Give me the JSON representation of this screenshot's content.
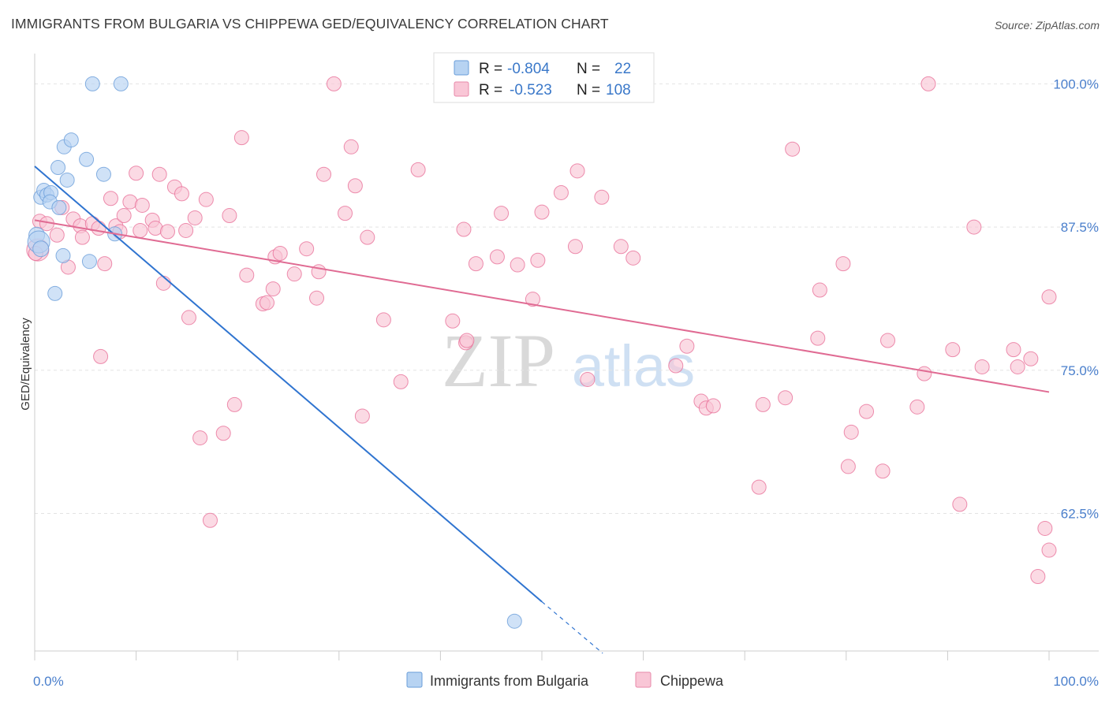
{
  "title": "IMMIGRANTS FROM BULGARIA VS CHIPPEWA GED/EQUIVALENCY CORRELATION CHART",
  "source": "Source: ZipAtlas.com",
  "watermark": {
    "zip": "ZIP",
    "atlas": "atlas"
  },
  "stats": [
    {
      "r_label": "R =",
      "r_value": "-0.804",
      "n_label": "N =",
      "n_value": "22",
      "fill": "#b7d3f2",
      "stroke": "#6a9ed9"
    },
    {
      "r_label": "R =",
      "r_value": "-0.523",
      "n_label": "N =",
      "n_value": "108",
      "fill": "#f9c6d6",
      "stroke": "#e889aa"
    }
  ],
  "chart_data": {
    "type": "scatter",
    "title": "IMMIGRANTS FROM BULGARIA VS CHIPPEWA GED/EQUIVALENCY CORRELATION CHART",
    "xlabel": "",
    "ylabel": "GED/Equivalency",
    "xlim": [
      0,
      100
    ],
    "ylim": [
      50.5,
      102.5
    ],
    "x_tick_labels": [
      {
        "value": 0,
        "label": "0.0%"
      },
      {
        "value": 100,
        "label": "100.0%"
      }
    ],
    "y_tick_labels": [
      {
        "value": 100,
        "label": "100.0%"
      },
      {
        "value": 87.5,
        "label": "87.5%"
      },
      {
        "value": 75,
        "label": "75.0%"
      },
      {
        "value": 62.5,
        "label": "62.5%"
      }
    ],
    "grid": true,
    "legend": "bottom-center",
    "series": [
      {
        "name": "Immigrants from Bulgaria",
        "color": "#6a9ed9",
        "fill": "#b7d3f2",
        "trend": {
          "x1": 0,
          "y1": 92.8,
          "x2": 50,
          "y2": 54.8,
          "dash_to": {
            "x": 56,
            "y": 50.3
          }
        },
        "points": [
          {
            "x": 0.2,
            "y": 86.8,
            "s": 10
          },
          {
            "x": 0.4,
            "y": 86.2,
            "s": 14
          },
          {
            "x": 0.6,
            "y": 85.6,
            "s": 10
          },
          {
            "x": 0.6,
            "y": 90.1,
            "s": 9
          },
          {
            "x": 0.9,
            "y": 90.7,
            "s": 9
          },
          {
            "x": 1.2,
            "y": 90.3,
            "s": 9
          },
          {
            "x": 1.6,
            "y": 90.5,
            "s": 9
          },
          {
            "x": 1.5,
            "y": 89.7,
            "s": 9
          },
          {
            "x": 2.4,
            "y": 89.2,
            "s": 9
          },
          {
            "x": 2.3,
            "y": 92.7,
            "s": 9
          },
          {
            "x": 2.9,
            "y": 94.5,
            "s": 9
          },
          {
            "x": 3.2,
            "y": 91.6,
            "s": 9
          },
          {
            "x": 3.6,
            "y": 95.1,
            "s": 9
          },
          {
            "x": 5.1,
            "y": 93.4,
            "s": 9
          },
          {
            "x": 5.7,
            "y": 100.0,
            "s": 9
          },
          {
            "x": 6.8,
            "y": 92.1,
            "s": 9
          },
          {
            "x": 8.5,
            "y": 100.0,
            "s": 9
          },
          {
            "x": 2.8,
            "y": 85.0,
            "s": 9
          },
          {
            "x": 5.4,
            "y": 84.5,
            "s": 9
          },
          {
            "x": 2.0,
            "y": 81.7,
            "s": 9
          },
          {
            "x": 7.9,
            "y": 86.9,
            "s": 9
          },
          {
            "x": 47.3,
            "y": 53.1,
            "s": 9
          }
        ]
      },
      {
        "name": "Chippewa",
        "color": "#e8729a",
        "fill": "#f9c6d6",
        "trend": {
          "x1": 0,
          "y1": 88.1,
          "x2": 100,
          "y2": 73.1
        },
        "points": [
          {
            "x": 0.3,
            "y": 85.5,
            "s": 14
          },
          {
            "x": 0.5,
            "y": 88.0,
            "s": 9
          },
          {
            "x": 1.2,
            "y": 87.8,
            "s": 9
          },
          {
            "x": 2.2,
            "y": 86.8,
            "s": 9
          },
          {
            "x": 2.7,
            "y": 89.2,
            "s": 9
          },
          {
            "x": 3.3,
            "y": 84.0,
            "s": 9
          },
          {
            "x": 3.8,
            "y": 88.2,
            "s": 9
          },
          {
            "x": 4.5,
            "y": 87.6,
            "s": 9
          },
          {
            "x": 4.7,
            "y": 86.6,
            "s": 9
          },
          {
            "x": 5.7,
            "y": 87.8,
            "s": 9
          },
          {
            "x": 6.3,
            "y": 87.4,
            "s": 9
          },
          {
            "x": 6.5,
            "y": 76.2,
            "s": 9
          },
          {
            "x": 6.9,
            "y": 84.3,
            "s": 9
          },
          {
            "x": 7.5,
            "y": 90.0,
            "s": 9
          },
          {
            "x": 8.0,
            "y": 87.6,
            "s": 9
          },
          {
            "x": 8.4,
            "y": 87.1,
            "s": 9
          },
          {
            "x": 8.8,
            "y": 88.5,
            "s": 9
          },
          {
            "x": 9.4,
            "y": 89.7,
            "s": 9
          },
          {
            "x": 10.0,
            "y": 92.2,
            "s": 9
          },
          {
            "x": 10.4,
            "y": 87.2,
            "s": 9
          },
          {
            "x": 10.6,
            "y": 89.4,
            "s": 9
          },
          {
            "x": 11.6,
            "y": 88.1,
            "s": 9
          },
          {
            "x": 11.9,
            "y": 87.4,
            "s": 9
          },
          {
            "x": 12.3,
            "y": 92.1,
            "s": 9
          },
          {
            "x": 12.7,
            "y": 82.6,
            "s": 9
          },
          {
            "x": 13.1,
            "y": 87.1,
            "s": 9
          },
          {
            "x": 13.8,
            "y": 91.0,
            "s": 9
          },
          {
            "x": 14.5,
            "y": 90.4,
            "s": 9
          },
          {
            "x": 14.9,
            "y": 87.2,
            "s": 9
          },
          {
            "x": 15.2,
            "y": 79.6,
            "s": 9
          },
          {
            "x": 15.8,
            "y": 88.3,
            "s": 9
          },
          {
            "x": 16.3,
            "y": 69.1,
            "s": 9
          },
          {
            "x": 16.9,
            "y": 89.9,
            "s": 9
          },
          {
            "x": 17.3,
            "y": 61.9,
            "s": 9
          },
          {
            "x": 18.6,
            "y": 69.5,
            "s": 9
          },
          {
            "x": 19.2,
            "y": 88.5,
            "s": 9
          },
          {
            "x": 19.7,
            "y": 72.0,
            "s": 9
          },
          {
            "x": 20.4,
            "y": 95.3,
            "s": 9
          },
          {
            "x": 20.9,
            "y": 83.3,
            "s": 9
          },
          {
            "x": 22.5,
            "y": 80.8,
            "s": 9
          },
          {
            "x": 22.9,
            "y": 80.9,
            "s": 9
          },
          {
            "x": 23.5,
            "y": 82.1,
            "s": 9
          },
          {
            "x": 23.7,
            "y": 84.9,
            "s": 9
          },
          {
            "x": 24.2,
            "y": 85.2,
            "s": 9
          },
          {
            "x": 25.6,
            "y": 83.4,
            "s": 9
          },
          {
            "x": 26.8,
            "y": 85.6,
            "s": 9
          },
          {
            "x": 27.8,
            "y": 81.3,
            "s": 9
          },
          {
            "x": 28.0,
            "y": 83.6,
            "s": 9
          },
          {
            "x": 28.5,
            "y": 92.1,
            "s": 9
          },
          {
            "x": 29.5,
            "y": 100.0,
            "s": 9
          },
          {
            "x": 30.6,
            "y": 88.7,
            "s": 9
          },
          {
            "x": 31.2,
            "y": 94.5,
            "s": 9
          },
          {
            "x": 31.6,
            "y": 91.1,
            "s": 9
          },
          {
            "x": 32.3,
            "y": 71.0,
            "s": 9
          },
          {
            "x": 32.8,
            "y": 86.6,
            "s": 9
          },
          {
            "x": 34.4,
            "y": 79.4,
            "s": 9
          },
          {
            "x": 36.1,
            "y": 74.0,
            "s": 9
          },
          {
            "x": 37.8,
            "y": 92.5,
            "s": 9
          },
          {
            "x": 41.2,
            "y": 79.3,
            "s": 9
          },
          {
            "x": 42.3,
            "y": 87.3,
            "s": 9
          },
          {
            "x": 42.5,
            "y": 77.4,
            "s": 9
          },
          {
            "x": 42.6,
            "y": 77.6,
            "s": 9
          },
          {
            "x": 43.5,
            "y": 84.3,
            "s": 9
          },
          {
            "x": 45.6,
            "y": 84.9,
            "s": 9
          },
          {
            "x": 46.0,
            "y": 88.7,
            "s": 9
          },
          {
            "x": 47.6,
            "y": 84.2,
            "s": 9
          },
          {
            "x": 49.1,
            "y": 81.2,
            "s": 9
          },
          {
            "x": 49.6,
            "y": 84.6,
            "s": 9
          },
          {
            "x": 50.0,
            "y": 88.8,
            "s": 9
          },
          {
            "x": 51.9,
            "y": 90.5,
            "s": 9
          },
          {
            "x": 53.3,
            "y": 85.8,
            "s": 9
          },
          {
            "x": 53.5,
            "y": 92.4,
            "s": 9
          },
          {
            "x": 54.5,
            "y": 74.2,
            "s": 9
          },
          {
            "x": 55.9,
            "y": 90.1,
            "s": 9
          },
          {
            "x": 57.8,
            "y": 85.8,
            "s": 9
          },
          {
            "x": 59.0,
            "y": 84.8,
            "s": 9
          },
          {
            "x": 63.2,
            "y": 75.4,
            "s": 9
          },
          {
            "x": 64.3,
            "y": 77.1,
            "s": 9
          },
          {
            "x": 65.7,
            "y": 72.3,
            "s": 9
          },
          {
            "x": 66.2,
            "y": 71.7,
            "s": 9
          },
          {
            "x": 66.9,
            "y": 71.9,
            "s": 9
          },
          {
            "x": 71.8,
            "y": 72.0,
            "s": 9
          },
          {
            "x": 71.4,
            "y": 64.8,
            "s": 9
          },
          {
            "x": 74.0,
            "y": 72.6,
            "s": 9
          },
          {
            "x": 74.7,
            "y": 94.3,
            "s": 9
          },
          {
            "x": 77.2,
            "y": 77.8,
            "s": 9
          },
          {
            "x": 77.4,
            "y": 82.0,
            "s": 9
          },
          {
            "x": 79.7,
            "y": 84.3,
            "s": 9
          },
          {
            "x": 80.2,
            "y": 66.6,
            "s": 9
          },
          {
            "x": 80.5,
            "y": 69.6,
            "s": 9
          },
          {
            "x": 82.0,
            "y": 71.4,
            "s": 9
          },
          {
            "x": 83.6,
            "y": 66.2,
            "s": 9
          },
          {
            "x": 84.1,
            "y": 77.6,
            "s": 9
          },
          {
            "x": 87.0,
            "y": 71.8,
            "s": 9
          },
          {
            "x": 87.7,
            "y": 74.7,
            "s": 9
          },
          {
            "x": 88.1,
            "y": 100.0,
            "s": 9
          },
          {
            "x": 90.5,
            "y": 76.8,
            "s": 9
          },
          {
            "x": 91.2,
            "y": 63.3,
            "s": 9
          },
          {
            "x": 92.6,
            "y": 87.5,
            "s": 9
          },
          {
            "x": 93.4,
            "y": 75.3,
            "s": 9
          },
          {
            "x": 96.5,
            "y": 76.8,
            "s": 9
          },
          {
            "x": 96.9,
            "y": 75.3,
            "s": 9
          },
          {
            "x": 98.2,
            "y": 76.0,
            "s": 9
          },
          {
            "x": 98.9,
            "y": 57.0,
            "s": 9
          },
          {
            "x": 99.6,
            "y": 61.2,
            "s": 9
          },
          {
            "x": 100.0,
            "y": 59.3,
            "s": 9
          },
          {
            "x": 100.0,
            "y": 81.4,
            "s": 9
          },
          {
            "x": 0.1,
            "y": 85.2,
            "s": 9
          }
        ]
      }
    ]
  },
  "legend_items": [
    {
      "label": "Immigrants from Bulgaria",
      "fill": "#b7d3f2",
      "stroke": "#6a9ed9"
    },
    {
      "label": "Chippewa",
      "fill": "#f9c6d6",
      "stroke": "#e889aa"
    }
  ]
}
